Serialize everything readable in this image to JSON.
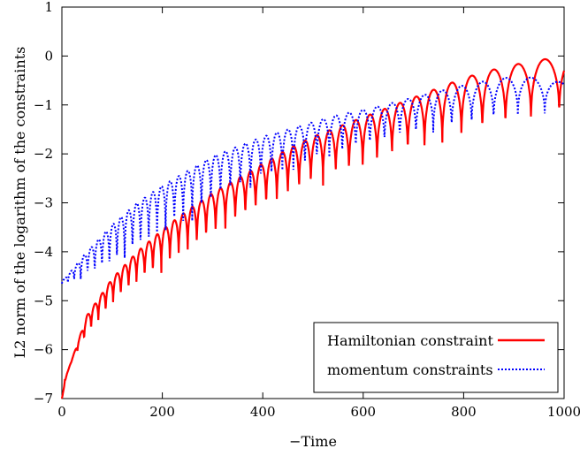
{
  "chart_data": {
    "type": "line",
    "xlabel": "−Time",
    "ylabel": "L2 norm of the logarithm of the constraints",
    "xlim": [
      0,
      1000
    ],
    "ylim": [
      -7,
      1
    ],
    "xticks": [
      "0",
      "200",
      "400",
      "600",
      "800",
      "1000"
    ],
    "yticks": [
      "1",
      "0",
      "−1",
      "−2",
      "−3",
      "−4",
      "−5",
      "−6",
      "−7"
    ],
    "grid": false,
    "legend_position": "bottom-right",
    "series": [
      {
        "name": "Hamiltonian constraint",
        "color": "#ff0000",
        "style": "solid",
        "envelope_x": [
          0,
          10,
          50,
          100,
          150,
          200,
          250,
          300,
          350,
          400,
          450,
          500,
          550,
          600,
          650,
          700,
          750,
          800,
          850,
          900,
          950,
          1000
        ],
        "envelope_y": [
          -7.0,
          -6.5,
          -5.3,
          -4.55,
          -4.0,
          -3.55,
          -3.15,
          -2.8,
          -2.5,
          -2.2,
          -1.9,
          -1.65,
          -1.45,
          -1.25,
          -1.05,
          -0.85,
          -0.65,
          -0.45,
          -0.3,
          -0.18,
          -0.08,
          -0.02
        ],
        "dip_y": [
          -6.9,
          -6.4,
          -5.8,
          -5.2,
          -4.8,
          -4.5,
          -4.15,
          -3.85,
          -3.55,
          -3.3,
          -3.05,
          -2.8,
          -2.6,
          -2.45,
          -2.25,
          -2.1,
          -1.95,
          -1.8,
          -1.65,
          -1.55,
          -1.4,
          -1.3
        ],
        "period_x": [
          12,
          12,
          14,
          15,
          16,
          17,
          18,
          19,
          20,
          21,
          22,
          24,
          26,
          28,
          30,
          33,
          36,
          40,
          45,
          50,
          55,
          60
        ]
      },
      {
        "name": "momentum constraints",
        "color": "#0000ff",
        "style": "dotted",
        "envelope_x": [
          0,
          10,
          50,
          100,
          150,
          200,
          250,
          300,
          350,
          400,
          450,
          500,
          550,
          600,
          650,
          700,
          750,
          800,
          850,
          900,
          950,
          1000
        ],
        "envelope_y": [
          -4.6,
          -4.5,
          -4.0,
          -3.45,
          -3.0,
          -2.65,
          -2.35,
          -2.05,
          -1.85,
          -1.65,
          -1.5,
          -1.35,
          -1.2,
          -1.1,
          -0.98,
          -0.85,
          -0.72,
          -0.6,
          -0.5,
          -0.42,
          -0.45,
          -0.55
        ],
        "dip_y": [
          -4.65,
          -4.65,
          -4.6,
          -4.4,
          -4.1,
          -3.75,
          -3.45,
          -3.15,
          -2.9,
          -2.7,
          -2.5,
          -2.3,
          -2.15,
          -2.0,
          -1.85,
          -1.7,
          -1.6,
          -1.5,
          -1.4,
          -1.3,
          -1.25,
          -1.2
        ],
        "period_x": [
          12,
          12,
          14,
          15,
          16,
          17,
          18,
          19,
          20,
          21,
          22,
          24,
          26,
          28,
          30,
          33,
          36,
          40,
          45,
          50,
          55,
          60
        ]
      }
    ]
  }
}
